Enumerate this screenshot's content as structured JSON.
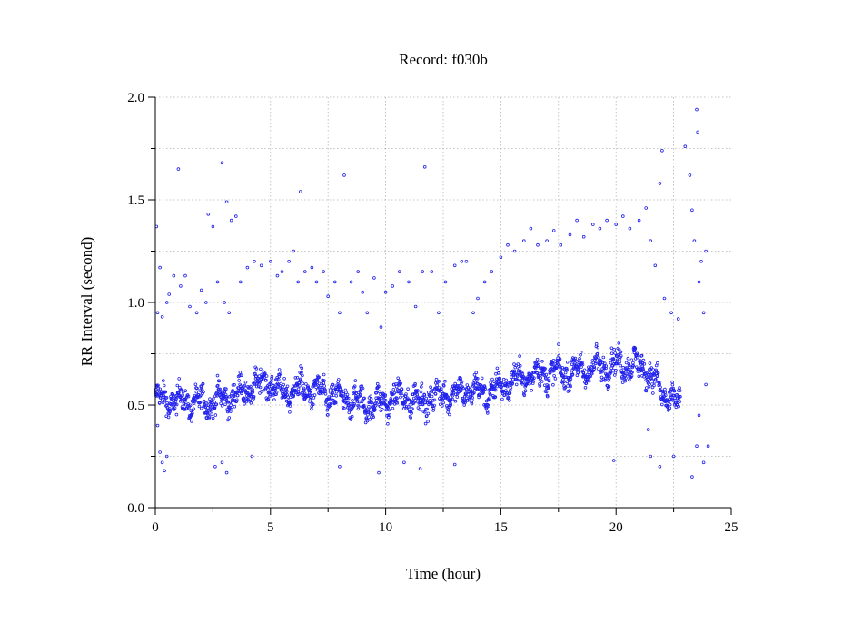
{
  "chart_data": {
    "type": "scatter",
    "title": "Record:  f030b",
    "xlabel": "Time (hour)",
    "ylabel": "RR Interval (second)",
    "xlim": [
      0,
      25
    ],
    "ylim": [
      0.0,
      2.0
    ],
    "xticks": [
      "0",
      "5",
      "10",
      "15",
      "20",
      "25"
    ],
    "yticks": [
      "0.0",
      "0.5",
      "1.0",
      "1.5",
      "2.0"
    ],
    "grid": true,
    "marker_color": "#2222ee",
    "series": [
      {
        "baseline_trend": [
          [
            0.0,
            0.53
          ],
          [
            1.0,
            0.52
          ],
          [
            2.0,
            0.51
          ],
          [
            3.0,
            0.53
          ],
          [
            4.0,
            0.57
          ],
          [
            4.8,
            0.62
          ],
          [
            5.5,
            0.56
          ],
          [
            6.5,
            0.58
          ],
          [
            7.5,
            0.55
          ],
          [
            8.5,
            0.52
          ],
          [
            9.5,
            0.5
          ],
          [
            10.5,
            0.54
          ],
          [
            11.5,
            0.52
          ],
          [
            12.5,
            0.55
          ],
          [
            13.5,
            0.57
          ],
          [
            14.5,
            0.56
          ],
          [
            15.5,
            0.62
          ],
          [
            16.5,
            0.65
          ],
          [
            17.5,
            0.66
          ],
          [
            18.5,
            0.67
          ],
          [
            19.5,
            0.69
          ],
          [
            20.5,
            0.7
          ],
          [
            21.3,
            0.68
          ],
          [
            22.0,
            0.56
          ],
          [
            22.8,
            0.49
          ]
        ],
        "ectopic_points": [
          [
            0.05,
            1.37
          ],
          [
            0.1,
            0.95
          ],
          [
            0.2,
            1.17
          ],
          [
            0.3,
            0.93
          ],
          [
            0.5,
            1.0
          ],
          [
            0.6,
            1.04
          ],
          [
            0.8,
            1.13
          ],
          [
            1.0,
            1.65
          ],
          [
            1.1,
            1.08
          ],
          [
            1.3,
            1.13
          ],
          [
            1.5,
            0.98
          ],
          [
            1.8,
            0.95
          ],
          [
            2.0,
            1.06
          ],
          [
            2.2,
            1.0
          ],
          [
            2.3,
            1.43
          ],
          [
            2.5,
            1.37
          ],
          [
            2.7,
            1.1
          ],
          [
            2.9,
            1.68
          ],
          [
            3.0,
            1.0
          ],
          [
            3.1,
            1.49
          ],
          [
            3.2,
            0.95
          ],
          [
            3.3,
            1.4
          ],
          [
            3.5,
            1.42
          ],
          [
            3.7,
            1.1
          ],
          [
            4.0,
            1.17
          ],
          [
            4.3,
            1.2
          ],
          [
            4.6,
            1.18
          ],
          [
            5.0,
            1.2
          ],
          [
            5.3,
            1.13
          ],
          [
            5.5,
            1.15
          ],
          [
            5.8,
            1.2
          ],
          [
            6.0,
            1.25
          ],
          [
            6.2,
            1.1
          ],
          [
            6.3,
            1.54
          ],
          [
            6.5,
            1.15
          ],
          [
            6.8,
            1.17
          ],
          [
            7.0,
            1.1
          ],
          [
            7.3,
            1.15
          ],
          [
            7.5,
            1.03
          ],
          [
            7.8,
            1.1
          ],
          [
            8.0,
            0.95
          ],
          [
            8.2,
            1.62
          ],
          [
            8.5,
            1.1
          ],
          [
            8.8,
            1.15
          ],
          [
            9.0,
            1.05
          ],
          [
            9.2,
            0.95
          ],
          [
            9.5,
            1.12
          ],
          [
            9.8,
            0.88
          ],
          [
            10.0,
            1.05
          ],
          [
            10.3,
            1.08
          ],
          [
            10.6,
            1.15
          ],
          [
            11.0,
            1.1
          ],
          [
            11.3,
            0.98
          ],
          [
            11.6,
            1.15
          ],
          [
            11.7,
            1.66
          ],
          [
            12.0,
            1.15
          ],
          [
            12.3,
            0.95
          ],
          [
            12.6,
            1.1
          ],
          [
            13.0,
            1.18
          ],
          [
            13.3,
            1.2
          ],
          [
            13.5,
            1.2
          ],
          [
            13.8,
            0.95
          ],
          [
            14.0,
            1.02
          ],
          [
            14.3,
            1.1
          ],
          [
            14.6,
            1.15
          ],
          [
            15.0,
            1.22
          ],
          [
            15.3,
            1.28
          ],
          [
            15.6,
            1.25
          ],
          [
            16.0,
            1.3
          ],
          [
            16.3,
            1.36
          ],
          [
            16.6,
            1.28
          ],
          [
            17.0,
            1.3
          ],
          [
            17.3,
            1.35
          ],
          [
            17.6,
            1.28
          ],
          [
            18.0,
            1.33
          ],
          [
            18.3,
            1.4
          ],
          [
            18.6,
            1.32
          ],
          [
            19.0,
            1.38
          ],
          [
            19.3,
            1.36
          ],
          [
            19.6,
            1.4
          ],
          [
            20.0,
            1.38
          ],
          [
            20.3,
            1.42
          ],
          [
            20.6,
            1.36
          ],
          [
            21.0,
            1.4
          ],
          [
            21.3,
            1.46
          ],
          [
            21.5,
            1.3
          ],
          [
            21.7,
            1.18
          ],
          [
            21.9,
            1.58
          ],
          [
            22.0,
            1.74
          ],
          [
            22.1,
            1.02
          ],
          [
            22.4,
            0.95
          ],
          [
            22.7,
            0.92
          ],
          [
            23.0,
            1.76
          ],
          [
            23.2,
            1.62
          ],
          [
            23.3,
            1.45
          ],
          [
            23.4,
            1.3
          ],
          [
            23.5,
            1.94
          ],
          [
            23.55,
            1.83
          ],
          [
            23.6,
            1.1
          ],
          [
            23.7,
            1.2
          ],
          [
            23.8,
            0.95
          ],
          [
            23.9,
            1.25
          ],
          [
            0.2,
            0.27
          ],
          [
            0.3,
            0.22
          ],
          [
            0.4,
            0.18
          ],
          [
            0.5,
            0.25
          ],
          [
            2.6,
            0.2
          ],
          [
            2.9,
            0.22
          ],
          [
            3.1,
            0.17
          ],
          [
            4.2,
            0.25
          ],
          [
            8.0,
            0.2
          ],
          [
            9.7,
            0.17
          ],
          [
            10.8,
            0.22
          ],
          [
            11.5,
            0.19
          ],
          [
            13.0,
            0.21
          ],
          [
            19.9,
            0.23
          ],
          [
            21.5,
            0.25
          ],
          [
            21.9,
            0.2
          ],
          [
            22.5,
            0.25
          ],
          [
            23.3,
            0.15
          ],
          [
            23.5,
            0.3
          ],
          [
            23.8,
            0.22
          ],
          [
            24.0,
            0.3
          ],
          [
            0.1,
            0.4
          ],
          [
            21.4,
            0.38
          ],
          [
            23.6,
            0.45
          ],
          [
            23.9,
            0.6
          ]
        ]
      }
    ]
  }
}
